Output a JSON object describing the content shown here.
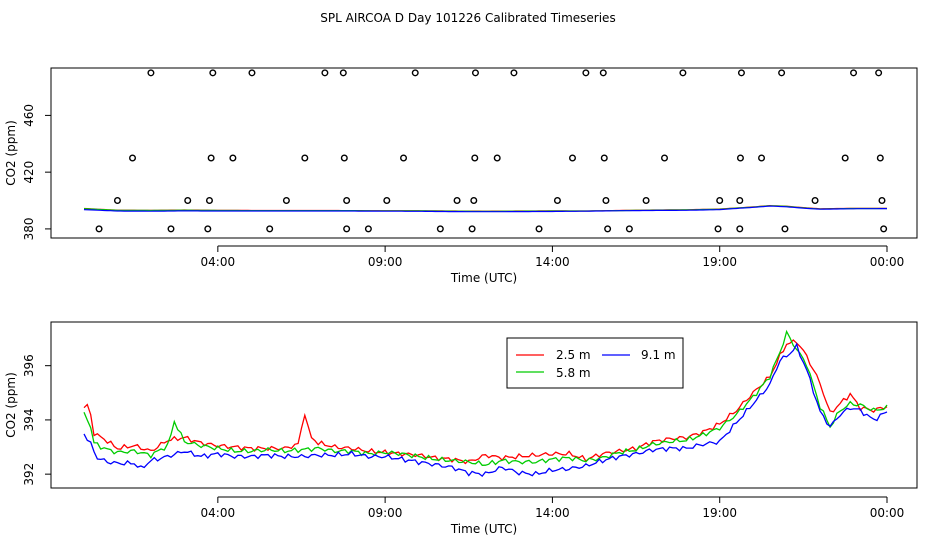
{
  "title": "SPL AIRCOA D  Day 101226  Calibrated Timeseries",
  "chart_data": [
    {
      "type": "scatter",
      "panel": "top",
      "xlabel": "Time (UTC)",
      "ylabel": "CO2 (ppm)",
      "xlim": [
        0,
        24
      ],
      "ylim": [
        375,
        492
      ],
      "x_ticks": [
        {
          "value": 4,
          "label": "04:00"
        },
        {
          "value": 9,
          "label": "09:00"
        },
        {
          "value": 14,
          "label": "14:00"
        },
        {
          "value": 19,
          "label": "19:00"
        },
        {
          "value": 24,
          "label": "00:00"
        }
      ],
      "y_ticks": [
        {
          "value": 380,
          "label": "380"
        },
        {
          "value": 420,
          "label": "420"
        },
        {
          "value": 460,
          "label": "460"
        }
      ],
      "markers": {
        "style": "open circle",
        "points": [
          {
            "x": 2.0,
            "y": 490
          },
          {
            "x": 3.85,
            "y": 490
          },
          {
            "x": 5.02,
            "y": 490
          },
          {
            "x": 7.2,
            "y": 490
          },
          {
            "x": 7.75,
            "y": 490
          },
          {
            "x": 9.9,
            "y": 490
          },
          {
            "x": 11.7,
            "y": 490
          },
          {
            "x": 12.85,
            "y": 490
          },
          {
            "x": 15.0,
            "y": 490
          },
          {
            "x": 15.52,
            "y": 490
          },
          {
            "x": 17.9,
            "y": 490
          },
          {
            "x": 19.65,
            "y": 490
          },
          {
            "x": 20.85,
            "y": 490
          },
          {
            "x": 23.0,
            "y": 490
          },
          {
            "x": 23.75,
            "y": 490
          },
          {
            "x": 1.45,
            "y": 430
          },
          {
            "x": 3.8,
            "y": 430
          },
          {
            "x": 4.45,
            "y": 430
          },
          {
            "x": 6.6,
            "y": 430
          },
          {
            "x": 7.78,
            "y": 430
          },
          {
            "x": 9.55,
            "y": 430
          },
          {
            "x": 11.68,
            "y": 430
          },
          {
            "x": 12.35,
            "y": 430
          },
          {
            "x": 14.6,
            "y": 430
          },
          {
            "x": 15.55,
            "y": 430
          },
          {
            "x": 17.35,
            "y": 430
          },
          {
            "x": 19.62,
            "y": 430
          },
          {
            "x": 20.25,
            "y": 430
          },
          {
            "x": 22.75,
            "y": 430
          },
          {
            "x": 23.8,
            "y": 430
          },
          {
            "x": 1.0,
            "y": 400
          },
          {
            "x": 3.1,
            "y": 400
          },
          {
            "x": 3.75,
            "y": 400
          },
          {
            "x": 6.05,
            "y": 400
          },
          {
            "x": 7.85,
            "y": 400
          },
          {
            "x": 9.05,
            "y": 400
          },
          {
            "x": 11.15,
            "y": 400
          },
          {
            "x": 11.65,
            "y": 400
          },
          {
            "x": 14.15,
            "y": 400
          },
          {
            "x": 15.6,
            "y": 400
          },
          {
            "x": 16.8,
            "y": 400
          },
          {
            "x": 19.0,
            "y": 400
          },
          {
            "x": 19.6,
            "y": 400
          },
          {
            "x": 21.85,
            "y": 400
          },
          {
            "x": 23.85,
            "y": 400
          },
          {
            "x": 0.45,
            "y": 380
          },
          {
            "x": 2.6,
            "y": 380
          },
          {
            "x": 3.7,
            "y": 380
          },
          {
            "x": 5.55,
            "y": 380
          },
          {
            "x": 7.85,
            "y": 380
          },
          {
            "x": 8.5,
            "y": 380
          },
          {
            "x": 10.65,
            "y": 380
          },
          {
            "x": 11.6,
            "y": 380
          },
          {
            "x": 13.6,
            "y": 380
          },
          {
            "x": 15.65,
            "y": 380
          },
          {
            "x": 16.3,
            "y": 380
          },
          {
            "x": 18.95,
            "y": 380
          },
          {
            "x": 19.6,
            "y": 380
          },
          {
            "x": 20.95,
            "y": 380
          },
          {
            "x": 23.9,
            "y": 380
          }
        ]
      },
      "series": [
        {
          "name": "2.5 m",
          "color": "#ff0000",
          "x": [
            0,
            1,
            2,
            3,
            4,
            5,
            6,
            7,
            8,
            9,
            10,
            11,
            12,
            13,
            14,
            15,
            16,
            17,
            18,
            19,
            20,
            20.5,
            21,
            21.5,
            22,
            23,
            24
          ],
          "values": [
            394.4,
            393.2,
            393.1,
            393.3,
            393.1,
            393.0,
            393.0,
            393.0,
            392.9,
            392.8,
            392.8,
            392.6,
            392.5,
            392.6,
            392.7,
            392.6,
            393.0,
            393.3,
            393.5,
            394.0,
            395.5,
            396.4,
            396.0,
            395.0,
            394.2,
            394.5,
            394.5
          ]
        },
        {
          "name": "5.8 m",
          "color": "#00cc00",
          "x": [
            0,
            1,
            2,
            3,
            4,
            5,
            6,
            7,
            8,
            9,
            10,
            11,
            12,
            13,
            14,
            15,
            16,
            17,
            18,
            19,
            20,
            20.5,
            21,
            21.5,
            22,
            23,
            24
          ],
          "values": [
            394.3,
            393.1,
            393.0,
            393.2,
            393.0,
            392.9,
            392.9,
            392.9,
            392.9,
            392.7,
            392.7,
            392.5,
            392.4,
            392.5,
            392.6,
            392.6,
            392.9,
            393.2,
            393.4,
            393.9,
            395.4,
            396.3,
            395.9,
            394.8,
            394.0,
            394.4,
            394.4
          ]
        },
        {
          "name": "9.1 m",
          "color": "#0000ff",
          "x": [
            0,
            1,
            2,
            3,
            4,
            5,
            6,
            7,
            8,
            9,
            10,
            11,
            12,
            13,
            14,
            15,
            16,
            17,
            18,
            19,
            20,
            20.5,
            21,
            21.5,
            22,
            23,
            24
          ],
          "values": [
            393.6,
            392.6,
            392.5,
            392.7,
            392.6,
            392.6,
            392.6,
            392.6,
            392.6,
            392.5,
            392.4,
            392.2,
            392.1,
            392.2,
            392.3,
            392.5,
            392.8,
            393.0,
            393.1,
            393.6,
            395.2,
            396.1,
            395.6,
            394.6,
            393.9,
            394.2,
            394.3
          ]
        }
      ]
    },
    {
      "type": "line",
      "panel": "bottom",
      "xlabel": "Time (UTC)",
      "ylabel": "CO2 (ppm)",
      "xlim": [
        0,
        24
      ],
      "ylim": [
        391.6,
        397.5
      ],
      "x_ticks": [
        {
          "value": 4,
          "label": "04:00"
        },
        {
          "value": 9,
          "label": "09:00"
        },
        {
          "value": 14,
          "label": "14:00"
        },
        {
          "value": 19,
          "label": "19:00"
        },
        {
          "value": 24,
          "label": "00:00"
        }
      ],
      "y_ticks": [
        {
          "value": 392,
          "label": "392"
        },
        {
          "value": 394,
          "label": "394"
        },
        {
          "value": 396,
          "label": "396"
        }
      ],
      "legend": {
        "position": "top-right-center",
        "ncol": 2
      },
      "series": [
        {
          "name": "2.5 m",
          "color": "#ff0000",
          "x": [
            0,
            0.15,
            0.3,
            0.6,
            1.0,
            1.5,
            2.0,
            2.5,
            3.0,
            3.5,
            4.0,
            4.5,
            5.0,
            5.5,
            6.0,
            6.4,
            6.5,
            6.6,
            6.75,
            7.0,
            7.5,
            8.0,
            8.5,
            9.0,
            9.5,
            10.0,
            10.5,
            11.0,
            11.5,
            12.0,
            12.5,
            13.0,
            13.5,
            14.0,
            14.5,
            15.0,
            15.5,
            16.0,
            16.5,
            17.0,
            17.5,
            18.0,
            18.5,
            19.0,
            19.5,
            20.0,
            20.5,
            20.8,
            21.0,
            21.3,
            21.6,
            22.0,
            22.3,
            22.6,
            22.9,
            23.2,
            23.6,
            24.0
          ],
          "values": [
            394.45,
            394.55,
            393.5,
            393.3,
            392.95,
            393.05,
            392.85,
            393.25,
            393.35,
            393.15,
            393.05,
            393.0,
            392.95,
            392.95,
            392.95,
            393.1,
            393.7,
            394.25,
            393.4,
            393.15,
            393.0,
            392.95,
            392.85,
            392.8,
            392.75,
            392.7,
            392.6,
            392.55,
            392.45,
            392.7,
            392.6,
            392.65,
            392.7,
            392.75,
            392.75,
            392.55,
            392.75,
            392.85,
            392.95,
            393.2,
            393.3,
            393.35,
            393.55,
            393.85,
            394.35,
            395.0,
            395.6,
            396.35,
            396.8,
            396.9,
            396.35,
            395.35,
            394.25,
            394.6,
            394.95,
            394.45,
            394.35,
            394.5
          ]
        },
        {
          "name": "5.8 m",
          "color": "#00cc00",
          "x": [
            0,
            0.15,
            0.3,
            0.6,
            1.0,
            1.5,
            2.0,
            2.5,
            2.6,
            2.7,
            3.0,
            3.5,
            4.0,
            4.5,
            5.0,
            5.5,
            6.0,
            6.5,
            7.0,
            7.5,
            8.0,
            8.5,
            9.0,
            9.5,
            10.0,
            10.5,
            11.0,
            11.5,
            12.0,
            12.5,
            13.0,
            13.5,
            14.0,
            14.5,
            15.0,
            15.5,
            16.0,
            16.5,
            17.0,
            17.5,
            18.0,
            18.5,
            19.0,
            19.5,
            20.0,
            20.5,
            20.8,
            21.0,
            21.3,
            21.6,
            22.0,
            22.3,
            22.6,
            22.9,
            23.2,
            23.6,
            24.0
          ],
          "values": [
            394.2,
            394.0,
            393.15,
            392.95,
            392.8,
            392.85,
            392.7,
            393.05,
            393.45,
            393.95,
            393.2,
            393.05,
            392.95,
            392.85,
            392.85,
            392.9,
            392.85,
            392.9,
            392.95,
            392.85,
            392.85,
            392.75,
            392.8,
            392.75,
            392.65,
            392.55,
            392.5,
            392.45,
            392.35,
            392.5,
            392.45,
            392.45,
            392.55,
            392.6,
            392.5,
            392.6,
            392.8,
            392.9,
            393.1,
            393.2,
            393.25,
            393.45,
            393.7,
            394.2,
            394.85,
            395.6,
            396.5,
            397.2,
            396.6,
            396.05,
            394.5,
            393.75,
            394.35,
            394.6,
            394.55,
            394.35,
            394.45
          ]
        },
        {
          "name": "9.1 m",
          "color": "#0000ff",
          "x": [
            0,
            0.2,
            0.4,
            0.7,
            1.0,
            1.5,
            1.7,
            2.0,
            2.5,
            3.0,
            3.5,
            4.0,
            4.5,
            5.0,
            5.5,
            6.0,
            6.5,
            7.0,
            7.5,
            8.0,
            8.5,
            9.0,
            9.5,
            10.0,
            10.5,
            11.0,
            11.5,
            12.0,
            12.5,
            13.0,
            13.5,
            14.0,
            14.5,
            15.0,
            15.5,
            16.0,
            16.5,
            17.0,
            17.5,
            18.0,
            18.5,
            19.0,
            19.5,
            20.0,
            20.5,
            20.8,
            21.0,
            21.3,
            21.6,
            22.0,
            22.3,
            22.6,
            22.9,
            23.2,
            23.6,
            24.0
          ],
          "values": [
            393.5,
            393.1,
            392.6,
            392.45,
            392.4,
            392.4,
            392.2,
            392.5,
            392.65,
            392.85,
            392.65,
            392.75,
            392.65,
            392.65,
            392.7,
            392.65,
            392.65,
            392.7,
            392.7,
            392.75,
            392.65,
            392.65,
            392.55,
            392.45,
            392.35,
            392.25,
            392.05,
            392.0,
            392.25,
            392.05,
            392.0,
            392.15,
            392.2,
            392.3,
            392.5,
            392.65,
            392.75,
            392.9,
            392.95,
            392.95,
            393.1,
            393.2,
            393.9,
            394.6,
            395.3,
            396.2,
            396.35,
            396.7,
            395.85,
            394.3,
            393.75,
            394.2,
            394.45,
            394.35,
            394.0,
            394.3
          ]
        }
      ]
    }
  ]
}
